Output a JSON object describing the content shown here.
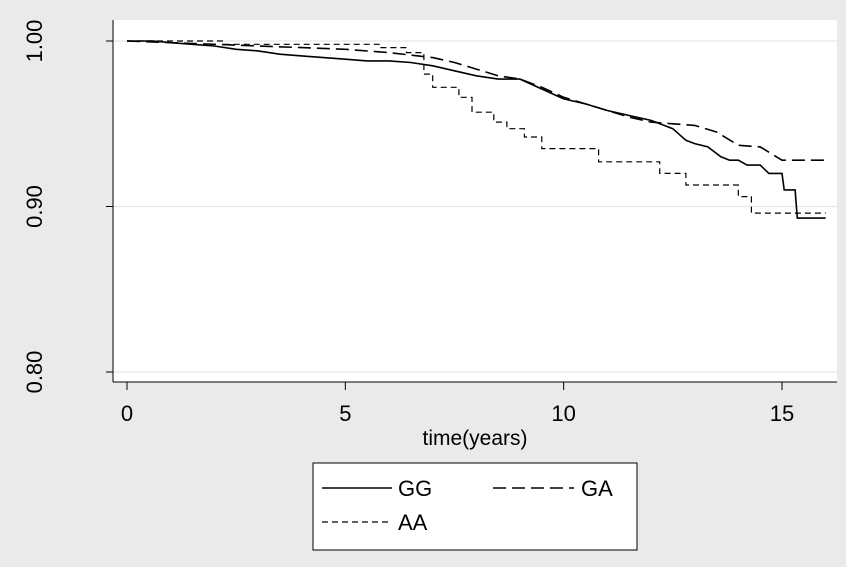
{
  "chart_data": {
    "type": "line",
    "title": "",
    "xlabel": "time(years)",
    "ylabel": "",
    "xlim": [
      0,
      16
    ],
    "ylim": [
      0.8,
      1.0
    ],
    "x_ticks": [
      0,
      5,
      10,
      15
    ],
    "y_ticks": [
      0.8,
      0.9,
      1.0
    ],
    "x_tick_labels": [
      "0",
      "5",
      "10",
      "15"
    ],
    "y_tick_labels": [
      "0.80",
      "0.90",
      "1.00"
    ],
    "grid": "horizontal",
    "legend_position": "bottom",
    "colors": {
      "background": "#eaeaea",
      "plot_area": "#ffffff",
      "line": "#000000",
      "grid": "#e6e6e6"
    },
    "series": [
      {
        "name": "GG",
        "style": "solid",
        "points": [
          [
            0,
            1.0
          ],
          [
            0.6,
            1.0
          ],
          [
            1.0,
            0.999
          ],
          [
            1.5,
            0.998
          ],
          [
            2.0,
            0.997
          ],
          [
            2.5,
            0.995
          ],
          [
            3.0,
            0.994
          ],
          [
            3.5,
            0.992
          ],
          [
            4.0,
            0.991
          ],
          [
            4.5,
            0.99
          ],
          [
            5.0,
            0.989
          ],
          [
            5.5,
            0.988
          ],
          [
            6.0,
            0.988
          ],
          [
            6.5,
            0.987
          ],
          [
            7.0,
            0.985
          ],
          [
            7.5,
            0.982
          ],
          [
            8.0,
            0.979
          ],
          [
            8.5,
            0.977
          ],
          [
            9.0,
            0.977
          ],
          [
            9.5,
            0.971
          ],
          [
            10.0,
            0.965
          ],
          [
            10.5,
            0.962
          ],
          [
            11.0,
            0.958
          ],
          [
            11.5,
            0.955
          ],
          [
            12.0,
            0.952
          ],
          [
            12.5,
            0.947
          ],
          [
            12.8,
            0.94
          ],
          [
            13.0,
            0.938
          ],
          [
            13.3,
            0.936
          ],
          [
            13.6,
            0.93
          ],
          [
            13.8,
            0.928
          ],
          [
            14.0,
            0.928
          ],
          [
            14.2,
            0.925
          ],
          [
            14.5,
            0.925
          ],
          [
            14.7,
            0.92
          ],
          [
            15.0,
            0.92
          ],
          [
            15.05,
            0.91
          ],
          [
            15.3,
            0.91
          ],
          [
            15.35,
            0.893
          ],
          [
            16.0,
            0.893
          ]
        ]
      },
      {
        "name": "GA",
        "style": "longdash",
        "points": [
          [
            0,
            1.0
          ],
          [
            1.0,
            0.999
          ],
          [
            2.0,
            0.998
          ],
          [
            3.0,
            0.997
          ],
          [
            4.0,
            0.996
          ],
          [
            5.0,
            0.995
          ],
          [
            6.0,
            0.993
          ],
          [
            7.0,
            0.99
          ],
          [
            7.5,
            0.987
          ],
          [
            8.0,
            0.983
          ],
          [
            8.5,
            0.979
          ],
          [
            9.0,
            0.977
          ],
          [
            9.5,
            0.972
          ],
          [
            10.0,
            0.966
          ],
          [
            10.5,
            0.962
          ],
          [
            11.0,
            0.958
          ],
          [
            11.5,
            0.954
          ],
          [
            12.0,
            0.951
          ],
          [
            12.5,
            0.95
          ],
          [
            13.0,
            0.949
          ],
          [
            13.5,
            0.945
          ],
          [
            14.0,
            0.937
          ],
          [
            14.5,
            0.936
          ],
          [
            15.0,
            0.928
          ],
          [
            16.0,
            0.928
          ]
        ]
      },
      {
        "name": "AA",
        "style": "shortdash",
        "points": [
          [
            0,
            1.0
          ],
          [
            2.2,
            1.0
          ],
          [
            2.2,
            0.998
          ],
          [
            5.8,
            0.998
          ],
          [
            5.8,
            0.996
          ],
          [
            6.4,
            0.996
          ],
          [
            6.4,
            0.993
          ],
          [
            6.8,
            0.993
          ],
          [
            6.8,
            0.98
          ],
          [
            7.0,
            0.98
          ],
          [
            7.0,
            0.972
          ],
          [
            7.6,
            0.972
          ],
          [
            7.6,
            0.966
          ],
          [
            7.9,
            0.966
          ],
          [
            7.9,
            0.957
          ],
          [
            8.4,
            0.957
          ],
          [
            8.4,
            0.951
          ],
          [
            8.7,
            0.951
          ],
          [
            8.7,
            0.947
          ],
          [
            9.1,
            0.947
          ],
          [
            9.1,
            0.942
          ],
          [
            9.5,
            0.942
          ],
          [
            9.5,
            0.935
          ],
          [
            10.8,
            0.935
          ],
          [
            10.8,
            0.927
          ],
          [
            12.2,
            0.927
          ],
          [
            12.2,
            0.92
          ],
          [
            12.8,
            0.92
          ],
          [
            12.8,
            0.913
          ],
          [
            14.0,
            0.913
          ],
          [
            14.0,
            0.906
          ],
          [
            14.3,
            0.906
          ],
          [
            14.3,
            0.896
          ],
          [
            16.0,
            0.896
          ]
        ]
      }
    ]
  }
}
